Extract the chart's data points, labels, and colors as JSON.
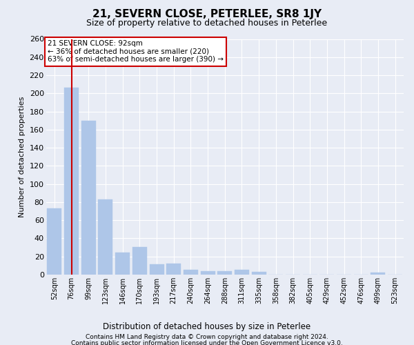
{
  "title": "21, SEVERN CLOSE, PETERLEE, SR8 1JY",
  "subtitle": "Size of property relative to detached houses in Peterlee",
  "xlabel": "Distribution of detached houses by size in Peterlee",
  "ylabel": "Number of detached properties",
  "footer_line1": "Contains HM Land Registry data © Crown copyright and database right 2024.",
  "footer_line2": "Contains public sector information licensed under the Open Government Licence v3.0.",
  "annotation_title": "21 SEVERN CLOSE: 92sqm",
  "annotation_line1": "← 36% of detached houses are smaller (220)",
  "annotation_line2": "63% of semi-detached houses are larger (390) →",
  "bar_labels": [
    "52sqm",
    "76sqm",
    "99sqm",
    "123sqm",
    "146sqm",
    "170sqm",
    "193sqm",
    "217sqm",
    "240sqm",
    "264sqm",
    "288sqm",
    "311sqm",
    "335sqm",
    "358sqm",
    "382sqm",
    "405sqm",
    "429sqm",
    "452sqm",
    "476sqm",
    "499sqm",
    "523sqm"
  ],
  "bar_values": [
    73,
    206,
    170,
    83,
    24,
    30,
    11,
    12,
    5,
    4,
    4,
    5,
    3,
    0,
    0,
    0,
    0,
    0,
    0,
    2,
    0
  ],
  "vline_index": 1,
  "bar_color": "#aec6e8",
  "vline_color": "#cc0000",
  "ylim": [
    0,
    260
  ],
  "yticks": [
    0,
    20,
    40,
    60,
    80,
    100,
    120,
    140,
    160,
    180,
    200,
    220,
    240,
    260
  ],
  "bg_color": "#e8ecf5",
  "plot_bg_color": "#e8ecf5",
  "grid_color": "#ffffff",
  "annotation_box_color": "#ffffff",
  "annotation_border_color": "#cc0000",
  "figsize": [
    6.0,
    5.0
  ],
  "dpi": 100
}
